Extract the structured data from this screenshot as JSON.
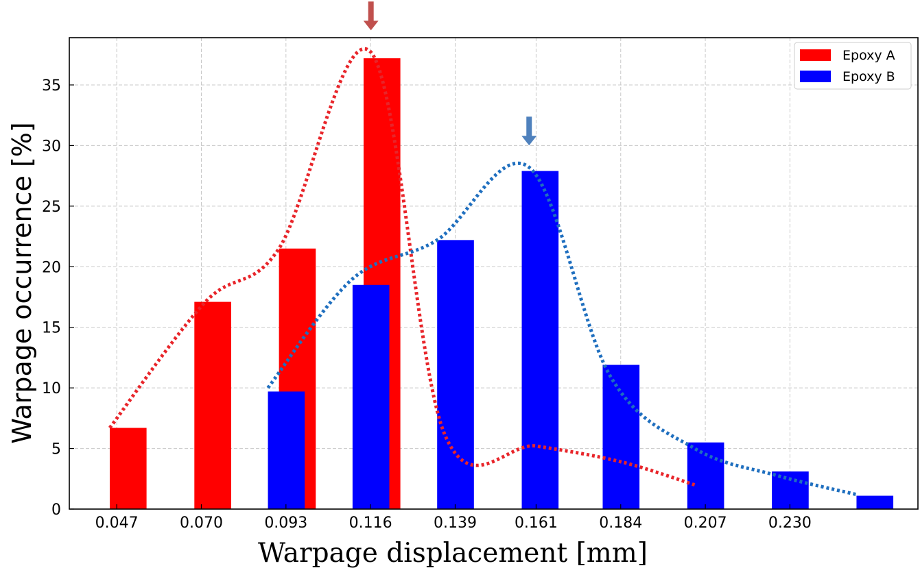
{
  "chart_data": {
    "type": "bar",
    "xlabel": "Warpage displacement [mm]",
    "ylabel": "Warpage occurrence [%]",
    "x_ticks": [
      "0.047",
      "0.070",
      "0.093",
      "0.116",
      "0.139",
      "0.161",
      "0.184",
      "0.207",
      "0.230"
    ],
    "x_tick_values": [
      0.047,
      0.07,
      0.093,
      0.116,
      0.139,
      0.161,
      0.184,
      0.207,
      0.23
    ],
    "y_ticks": [
      0,
      5,
      10,
      15,
      20,
      25,
      30,
      35
    ],
    "xlim": [
      0.0341,
      0.2648
    ],
    "ylim": [
      0,
      38.9
    ],
    "grid": true,
    "legend_position": "top-right",
    "series": [
      {
        "name": "Epoxy A",
        "color": "#ff0000",
        "trend_color": "#e8252a",
        "bars": [
          {
            "x0": 0.0451,
            "x1": 0.0551,
            "value": 6.7
          },
          {
            "x0": 0.0681,
            "x1": 0.0781,
            "value": 17.1
          },
          {
            "x0": 0.0911,
            "x1": 0.1011,
            "value": 21.5
          },
          {
            "x0": 0.1141,
            "x1": 0.1241,
            "value": 37.2
          },
          {
            "x0": 0.1371,
            "x1": 0.1401,
            "value": 6.3
          },
          {
            "x0": 0.1591,
            "x1": 0.1621,
            "value": 5.2
          },
          {
            "x0": 0.1811,
            "x1": 0.1841,
            "value": 3.9
          },
          {
            "x0": 0.2031,
            "x1": 0.2061,
            "value": 2.0
          }
        ],
        "trend": [
          [
            0.0451,
            6.7
          ],
          [
            0.0711,
            17.1
          ],
          [
            0.0911,
            21.5
          ],
          [
            0.1161,
            37.7
          ],
          [
            0.1361,
            6.2
          ],
          [
            0.1611,
            5.2
          ],
          [
            0.1841,
            3.9
          ],
          [
            0.2041,
            2.0
          ]
        ]
      },
      {
        "name": "Epoxy B",
        "color": "#0000ff",
        "trend_color": "#1f6fbf",
        "bars": [
          {
            "x0": 0.0881,
            "x1": 0.0981,
            "value": 9.7
          },
          {
            "x0": 0.1111,
            "x1": 0.1211,
            "value": 18.5
          },
          {
            "x0": 0.1341,
            "x1": 0.1441,
            "value": 22.2
          },
          {
            "x0": 0.1571,
            "x1": 0.1671,
            "value": 27.9
          },
          {
            "x0": 0.1791,
            "x1": 0.1891,
            "value": 11.9
          },
          {
            "x0": 0.2021,
            "x1": 0.2121,
            "value": 5.5
          },
          {
            "x0": 0.2251,
            "x1": 0.2351,
            "value": 3.1
          },
          {
            "x0": 0.2481,
            "x1": 0.2581,
            "value": 1.1
          }
        ],
        "trend": [
          [
            0.0881,
            10.0
          ],
          [
            0.1111,
            19.0
          ],
          [
            0.1341,
            22.2
          ],
          [
            0.1591,
            28.2
          ],
          [
            0.1811,
            11.0
          ],
          [
            0.2041,
            5.0
          ],
          [
            0.2261,
            2.8
          ],
          [
            0.2481,
            1.2
          ]
        ]
      }
    ],
    "annotations": [
      {
        "type": "arrow",
        "target_series": "Epoxy A",
        "x": 0.1161,
        "color": "#c0504d"
      },
      {
        "type": "arrow",
        "target_series": "Epoxy B",
        "x": 0.1591,
        "color": "#4f81bd"
      }
    ]
  }
}
